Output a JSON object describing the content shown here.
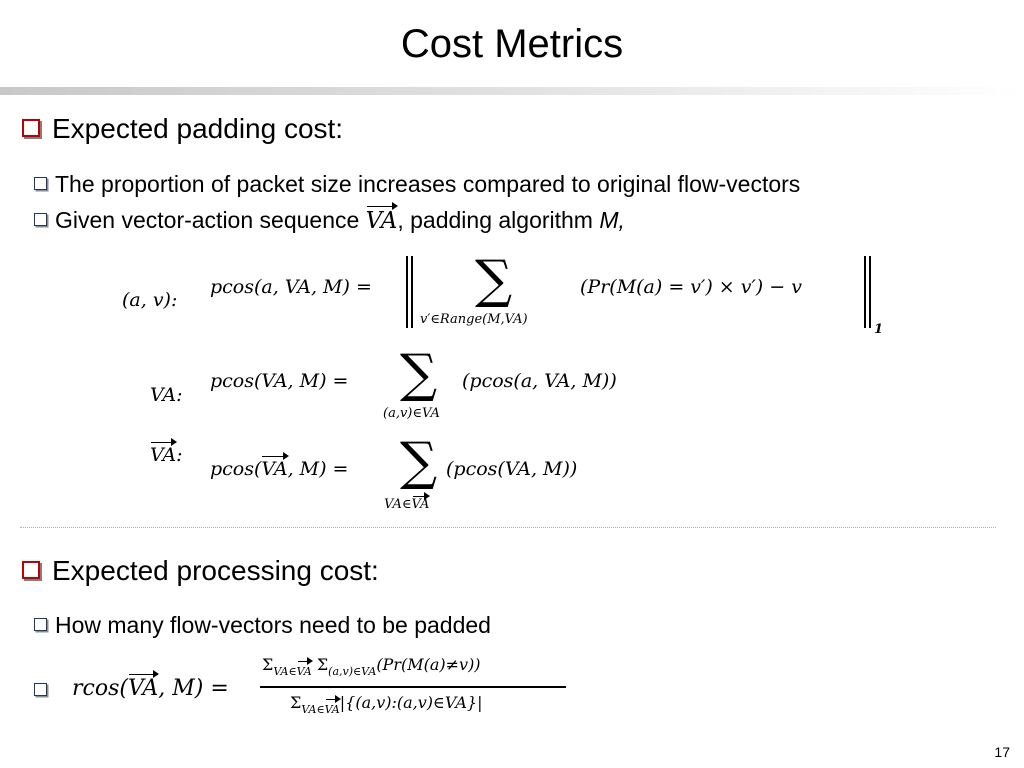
{
  "slide": {
    "title": "Cost Metrics",
    "page_number": "17"
  },
  "section1": {
    "heading": "Expected padding cost:",
    "bullets": [
      "The proportion of packet size increases compared to original flow-vectors"
    ],
    "given_prefix": "Given vector-action sequence ",
    "given_vec": "VA",
    "given_mid": ", padding algorithm ",
    "given_alg": "M,"
  },
  "formulas": {
    "av_label": "(a, v):",
    "av_lhs": "pcos(a, VA, M) =",
    "av_sub": "v′∈Range(M,VA)",
    "av_body": "(Pr(M(a) = v′) × v′) − v",
    "av_norm_sub": "1",
    "va_label": "VA:",
    "va_lhs": "pcos(VA, M) =",
    "va_sub": "(a,v)∈VA",
    "va_body": "(pcos(a, VA, M))",
    "vvec_label_var": "VA",
    "vvec_label_colon": ":",
    "vvec_lhs_pre": "pcos(",
    "vvec_lhs_vec": "VA",
    "vvec_lhs_post": ", M) =",
    "vvec_sub_pre": "VA∈",
    "vvec_sub_vec": "VA",
    "vvec_body": "(pcos(VA, M))"
  },
  "section2": {
    "heading": "Expected processing cost:",
    "bullet": "How many flow-vectors need to be padded",
    "rcos_lhs_pre": "rcos(",
    "rcos_lhs_vec": "VA",
    "rcos_lhs_post": ", M) =",
    "rcos_num_sum1": "Σ",
    "rcos_num_sub1_pre": "VA∈",
    "rcos_num_sub1_vec": "VA",
    "rcos_num_sum2": "Σ",
    "rcos_num_sub2": "(a,v)∈VA",
    "rcos_num_body": "(Pr(M(a)≠v))",
    "rcos_den_sum": "Σ",
    "rcos_den_sub_pre": "VA∈",
    "rcos_den_sub_vec": "VA",
    "rcos_den_body": "|{(a,v):(a,v)∈VA}|"
  }
}
